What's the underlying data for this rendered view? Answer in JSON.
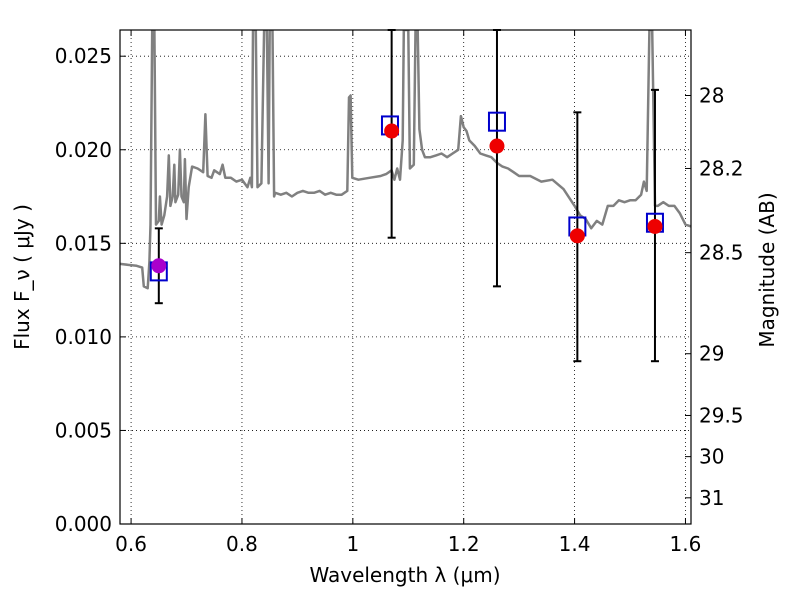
{
  "chart_data": {
    "type": "scatter",
    "title": "",
    "xlabel": "Wavelength  λ (μm)",
    "ylabel": "Flux  F_ν  ( μJy )",
    "ylabel_right": "Magnitude (AB)",
    "xlim": [
      0.58,
      1.61
    ],
    "ylim": [
      0.0,
      0.0264
    ],
    "grid": true,
    "xticks": [
      {
        "value": 0.6,
        "label": "0.6"
      },
      {
        "value": 0.8,
        "label": "0.8"
      },
      {
        "value": 1.0,
        "label": "1"
      },
      {
        "value": 1.2,
        "label": "1.2"
      },
      {
        "value": 1.4,
        "label": "1.4"
      },
      {
        "value": 1.6,
        "label": "1.6"
      }
    ],
    "yticks": [
      {
        "value": 0.0,
        "label": "0.000"
      },
      {
        "value": 0.005,
        "label": "0.005"
      },
      {
        "value": 0.01,
        "label": "0.010"
      },
      {
        "value": 0.015,
        "label": "0.015"
      },
      {
        "value": 0.02,
        "label": "0.020"
      },
      {
        "value": 0.025,
        "label": "0.025"
      }
    ],
    "right_ticks": [
      {
        "flux": 0.0229,
        "label": "28"
      },
      {
        "flux": 0.019,
        "label": "28.2"
      },
      {
        "flux": 0.0145,
        "label": "28.5"
      },
      {
        "flux": 0.0091,
        "label": "29"
      },
      {
        "flux": 0.0058,
        "label": "29.5"
      },
      {
        "flux": 0.0036,
        "label": "30"
      },
      {
        "flux": 0.0014,
        "label": "31"
      }
    ],
    "series": [
      {
        "kind": "line",
        "color": "#808080",
        "points": [
          [
            0.58,
            0.0139
          ],
          [
            0.61,
            0.0138
          ],
          [
            0.62,
            0.0137
          ],
          [
            0.623,
            0.0127
          ],
          [
            0.63,
            0.0126
          ],
          [
            0.633,
            0.014
          ],
          [
            0.635,
            0.016
          ],
          [
            0.638,
            0.0264
          ],
          [
            0.642,
            0.0264
          ],
          [
            0.645,
            0.016
          ],
          [
            0.65,
            0.0162
          ],
          [
            0.652,
            0.0175
          ],
          [
            0.655,
            0.016
          ],
          [
            0.66,
            0.0165
          ],
          [
            0.665,
            0.0175
          ],
          [
            0.668,
            0.0197
          ],
          [
            0.671,
            0.017
          ],
          [
            0.675,
            0.0175
          ],
          [
            0.678,
            0.0192
          ],
          [
            0.68,
            0.0172
          ],
          [
            0.685,
            0.0176
          ],
          [
            0.688,
            0.02
          ],
          [
            0.691,
            0.0175
          ],
          [
            0.695,
            0.0172
          ],
          [
            0.697,
            0.0195
          ],
          [
            0.7,
            0.0163
          ],
          [
            0.704,
            0.018
          ],
          [
            0.71,
            0.0191
          ],
          [
            0.72,
            0.019
          ],
          [
            0.73,
            0.0188
          ],
          [
            0.734,
            0.0219
          ],
          [
            0.738,
            0.0186
          ],
          [
            0.745,
            0.0185
          ],
          [
            0.75,
            0.0189
          ],
          [
            0.755,
            0.0188
          ],
          [
            0.76,
            0.0187
          ],
          [
            0.765,
            0.0192
          ],
          [
            0.77,
            0.0185
          ],
          [
            0.78,
            0.0185
          ],
          [
            0.79,
            0.0183
          ],
          [
            0.8,
            0.0184
          ],
          [
            0.81,
            0.018
          ],
          [
            0.815,
            0.0185
          ],
          [
            0.818,
            0.018
          ],
          [
            0.82,
            0.0264
          ],
          [
            0.825,
            0.0264
          ],
          [
            0.828,
            0.018
          ],
          [
            0.835,
            0.0182
          ],
          [
            0.84,
            0.0264
          ],
          [
            0.845,
            0.0264
          ],
          [
            0.848,
            0.0182
          ],
          [
            0.85,
            0.0264
          ],
          [
            0.855,
            0.0264
          ],
          [
            0.858,
            0.0175
          ],
          [
            0.86,
            0.0177
          ],
          [
            0.87,
            0.0176
          ],
          [
            0.88,
            0.0177
          ],
          [
            0.89,
            0.0175
          ],
          [
            0.9,
            0.0177
          ],
          [
            0.91,
            0.0178
          ],
          [
            0.92,
            0.0177
          ],
          [
            0.93,
            0.0177
          ],
          [
            0.94,
            0.0178
          ],
          [
            0.95,
            0.0176
          ],
          [
            0.96,
            0.0177
          ],
          [
            0.97,
            0.0176
          ],
          [
            0.98,
            0.0176
          ],
          [
            0.99,
            0.0178
          ],
          [
            0.993,
            0.0228
          ],
          [
            0.996,
            0.0229
          ],
          [
            0.999,
            0.0185
          ],
          [
            1.01,
            0.0184
          ],
          [
            1.03,
            0.0185
          ],
          [
            1.05,
            0.0186
          ],
          [
            1.06,
            0.0187
          ],
          [
            1.07,
            0.0189
          ],
          [
            1.075,
            0.0184
          ],
          [
            1.08,
            0.019
          ],
          [
            1.085,
            0.0184
          ],
          [
            1.09,
            0.0205
          ],
          [
            1.092,
            0.0264
          ],
          [
            1.1,
            0.0264
          ],
          [
            1.103,
            0.019
          ],
          [
            1.11,
            0.0192
          ],
          [
            1.113,
            0.0264
          ],
          [
            1.117,
            0.0264
          ],
          [
            1.12,
            0.0211
          ],
          [
            1.125,
            0.02
          ],
          [
            1.13,
            0.0196
          ],
          [
            1.14,
            0.0196
          ],
          [
            1.15,
            0.0197
          ],
          [
            1.16,
            0.0198
          ],
          [
            1.17,
            0.0196
          ],
          [
            1.18,
            0.0198
          ],
          [
            1.19,
            0.02
          ],
          [
            1.195,
            0.0218
          ],
          [
            1.2,
            0.0212
          ],
          [
            1.205,
            0.021
          ],
          [
            1.21,
            0.0205
          ],
          [
            1.22,
            0.0202
          ],
          [
            1.23,
            0.0198
          ],
          [
            1.24,
            0.0197
          ],
          [
            1.25,
            0.0196
          ],
          [
            1.26,
            0.0193
          ],
          [
            1.27,
            0.0191
          ],
          [
            1.28,
            0.019
          ],
          [
            1.29,
            0.0188
          ],
          [
            1.3,
            0.0186
          ],
          [
            1.32,
            0.0186
          ],
          [
            1.34,
            0.0183
          ],
          [
            1.36,
            0.0184
          ],
          [
            1.38,
            0.0179
          ],
          [
            1.4,
            0.017
          ],
          [
            1.41,
            0.0165
          ],
          [
            1.42,
            0.0163
          ],
          [
            1.43,
            0.0158
          ],
          [
            1.44,
            0.0162
          ],
          [
            1.45,
            0.016
          ],
          [
            1.46,
            0.017
          ],
          [
            1.47,
            0.017
          ],
          [
            1.48,
            0.0173
          ],
          [
            1.49,
            0.0172
          ],
          [
            1.5,
            0.0173
          ],
          [
            1.51,
            0.0173
          ],
          [
            1.52,
            0.0176
          ],
          [
            1.525,
            0.0183
          ],
          [
            1.53,
            0.0178
          ],
          [
            1.535,
            0.0264
          ],
          [
            1.54,
            0.0264
          ],
          [
            1.545,
            0.017
          ],
          [
            1.55,
            0.017
          ],
          [
            1.56,
            0.0172
          ],
          [
            1.57,
            0.017
          ],
          [
            1.58,
            0.017
          ],
          [
            1.59,
            0.0166
          ],
          [
            1.6,
            0.016
          ],
          [
            1.61,
            0.0159
          ]
        ]
      },
      {
        "kind": "errorbar",
        "color": "#000000",
        "points": [
          {
            "x": 0.65,
            "low": 0.0118,
            "high": 0.0158
          },
          {
            "x": 1.07,
            "low": 0.0153,
            "high": 0.0264
          },
          {
            "x": 1.26,
            "low": 0.0127,
            "high": 0.0264
          },
          {
            "x": 1.405,
            "low": 0.0087,
            "high": 0.022
          },
          {
            "x": 1.545,
            "low": 0.0087,
            "high": 0.0232
          }
        ]
      },
      {
        "kind": "square",
        "color": "#0000cc",
        "points": [
          [
            0.65,
            0.0135
          ],
          [
            1.067,
            0.0213
          ],
          [
            1.26,
            0.0215
          ],
          [
            1.405,
            0.0159
          ],
          [
            1.545,
            0.0161
          ]
        ]
      },
      {
        "kind": "circle",
        "color": "#ee0000",
        "points": [
          [
            1.07,
            0.021
          ],
          [
            1.26,
            0.0202
          ],
          [
            1.405,
            0.0154
          ],
          [
            1.545,
            0.0159
          ]
        ]
      },
      {
        "kind": "circle",
        "color": "#aa00cc",
        "points": [
          [
            0.65,
            0.0138
          ]
        ]
      }
    ]
  }
}
